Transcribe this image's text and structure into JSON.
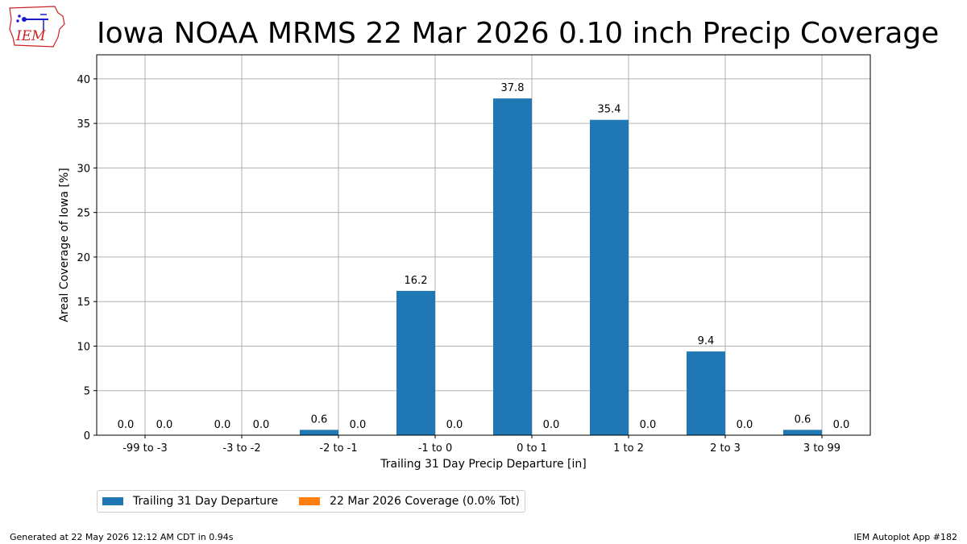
{
  "title": "Iowa NOAA MRMS 22 Mar 2026 0.10 inch Precip Coverage",
  "logo_text": "IEM",
  "footer_left": "Generated at 22 May 2026 12:12 AM CDT in 0.94s",
  "footer_right": "IEM Autoplot App #182",
  "colors": {
    "series1": "#1f77b4",
    "series2": "#ff7f0e",
    "grid": "#b0b0b0",
    "logo": "#cc2222"
  },
  "chart_data": {
    "type": "bar",
    "xlabel": "Trailing 31 Day Precip Departure [in]",
    "ylabel": "Areal Coverage of Iowa [%]",
    "ylim": [
      0,
      42.7
    ],
    "yticks": [
      0,
      5,
      10,
      15,
      20,
      25,
      30,
      35,
      40
    ],
    "grid": true,
    "legend_position": "bottom-left, below chart",
    "categories": [
      "-99 to -3",
      "-3 to -2",
      "-2 to -1",
      "-1 to 0",
      "0 to 1",
      "1 to 2",
      "2 to 3",
      "3 to 99"
    ],
    "series": [
      {
        "name": "Trailing 31 Day Departure",
        "values": [
          0.0,
          0.0,
          0.6,
          16.2,
          37.8,
          35.4,
          9.4,
          0.6
        ]
      },
      {
        "name": "22 Mar 2026 Coverage (0.0% Tot)",
        "values": [
          0.0,
          0.0,
          0.0,
          0.0,
          0.0,
          0.0,
          0.0,
          0.0
        ]
      }
    ]
  }
}
